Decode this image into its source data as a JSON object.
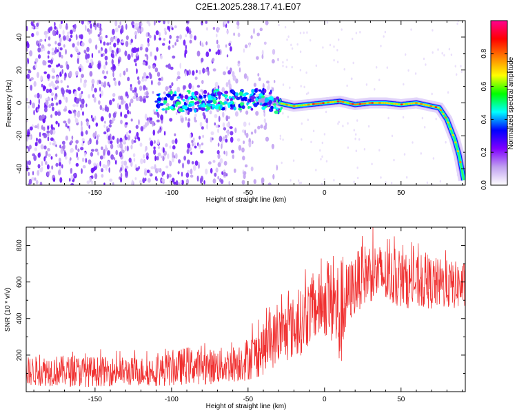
{
  "chart_data": [
    {
      "type": "heatmap",
      "title": "C2E1.2025.238.17.41.E07",
      "xlabel": "Height of straight line (km)",
      "ylabel": "Frequency (Hz)",
      "xlim": [
        -195,
        92
      ],
      "ylim": [
        -50,
        50
      ],
      "xticks": [
        -150,
        -100,
        -50,
        0,
        50
      ],
      "yticks": [
        -40,
        -20,
        0,
        20,
        40
      ],
      "colorbar": {
        "label": "Normalized spectral amplitude",
        "range": [
          0,
          1
        ],
        "ticks": [
          "0.0",
          "0.2",
          "0.4",
          "0.6",
          "0.8"
        ],
        "colors": [
          "#ffffff",
          "#c0a0f0",
          "#8000ff",
          "#0000ff",
          "#00ffff",
          "#00ff00",
          "#ffff00",
          "#ff8000",
          "#ff0000",
          "#ff0090"
        ]
      },
      "ridge": {
        "x": [
          -110,
          -90,
          -70,
          -50,
          -40,
          -30,
          -20,
          -10,
          0,
          10,
          20,
          30,
          40,
          50,
          60,
          70,
          75,
          80,
          85,
          88,
          91
        ],
        "frequency": [
          0,
          1,
          2,
          2,
          2,
          0,
          -2,
          -1,
          0,
          1,
          -1,
          0,
          0,
          -1,
          0,
          -2,
          -3,
          -10,
          -22,
          -32,
          -47
        ]
      }
    },
    {
      "type": "line",
      "title": "",
      "xlabel": "Height of straight line (km)",
      "ylabel": "SNR (10 * v/v)",
      "xlim": [
        -195,
        92
      ],
      "ylim": [
        0,
        900
      ],
      "xticks": [
        -150,
        -100,
        -50,
        0,
        50
      ],
      "yticks": [
        200,
        400,
        600,
        800
      ],
      "series": [
        {
          "name": "SNR",
          "color": "#f03030",
          "x": [
            -195,
            -180,
            -160,
            -140,
            -120,
            -100,
            -90,
            -80,
            -70,
            -60,
            -50,
            -45,
            -40,
            -35,
            -30,
            -25,
            -20,
            -15,
            -10,
            -5,
            0,
            5,
            10,
            15,
            20,
            25,
            30,
            40,
            50,
            60,
            70,
            80,
            90
          ],
          "upper": [
            190,
            200,
            195,
            190,
            190,
            210,
            250,
            230,
            240,
            250,
            300,
            330,
            370,
            420,
            460,
            500,
            520,
            560,
            620,
            640,
            680,
            720,
            740,
            700,
            760,
            800,
            830,
            790,
            760,
            740,
            740,
            720,
            710
          ],
          "lower": [
            30,
            30,
            25,
            30,
            30,
            30,
            40,
            40,
            40,
            50,
            60,
            70,
            90,
            120,
            150,
            160,
            180,
            200,
            250,
            280,
            300,
            250,
            80,
            350,
            420,
            470,
            490,
            470,
            460,
            450,
            450,
            450,
            450
          ]
        }
      ]
    }
  ]
}
